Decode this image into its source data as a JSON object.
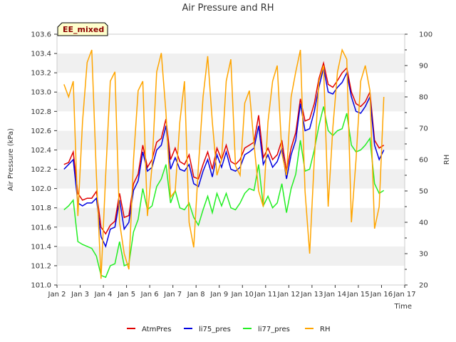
{
  "chart_data": {
    "type": "line",
    "title": "Air Pressure and RH",
    "badge": "EE_mixed",
    "xlabel": "Time",
    "ylabel": "Air Pressure (kPa)",
    "y2label": "RH",
    "x_ticks": [
      "Jan 2",
      "Jan 3",
      "Jan 4",
      "Jan 5",
      "Jan 6",
      "Jan 7",
      "Jan 8",
      "Jan 9",
      "Jan 10",
      "Jan 11",
      "Jan 12",
      "Jan 13",
      "Jan 14",
      "Jan 15",
      "Jan 16",
      "Jan 17"
    ],
    "xlim": [
      2,
      17
    ],
    "ylim": [
      101.0,
      103.6
    ],
    "y_ticks": [
      "101.0",
      "101.2",
      "101.4",
      "101.6",
      "101.8",
      "102.0",
      "102.2",
      "102.4",
      "102.6",
      "102.8",
      "103.0",
      "103.2",
      "103.4",
      "103.6"
    ],
    "y2lim": [
      20,
      100
    ],
    "y2_ticks": [
      "20",
      "30",
      "40",
      "50",
      "60",
      "70",
      "80",
      "90",
      "100"
    ],
    "grid": "horizontal bands",
    "legend_position": "bottom",
    "series": [
      {
        "name": "AtmPres",
        "axis": "left",
        "color": "#e00000",
        "x": [
          2.3,
          2.5,
          2.7,
          2.9,
          3.1,
          3.3,
          3.5,
          3.7,
          3.9,
          4.1,
          4.3,
          4.5,
          4.7,
          4.9,
          5.1,
          5.3,
          5.5,
          5.7,
          5.9,
          6.1,
          6.3,
          6.5,
          6.7,
          6.9,
          7.1,
          7.3,
          7.5,
          7.7,
          7.9,
          8.1,
          8.3,
          8.5,
          8.7,
          8.9,
          9.1,
          9.3,
          9.5,
          9.7,
          9.9,
          10.1,
          10.3,
          10.5,
          10.7,
          10.9,
          11.1,
          11.3,
          11.5,
          11.7,
          11.9,
          12.1,
          12.3,
          12.5,
          12.7,
          12.9,
          13.1,
          13.3,
          13.5,
          13.7,
          13.9,
          14.1,
          14.3,
          14.5,
          14.7,
          14.9,
          15.1,
          15.3,
          15.5,
          15.7,
          15.9,
          16.1
        ],
        "y": [
          102.25,
          102.27,
          102.38,
          101.95,
          101.88,
          101.9,
          101.9,
          101.97,
          101.6,
          101.53,
          101.62,
          101.66,
          101.95,
          101.7,
          101.72,
          102.05,
          102.15,
          102.45,
          102.22,
          102.3,
          102.48,
          102.52,
          102.72,
          102.3,
          102.42,
          102.28,
          102.25,
          102.35,
          102.12,
          102.1,
          102.25,
          102.38,
          102.2,
          102.42,
          102.3,
          102.45,
          102.28,
          102.25,
          102.3,
          102.42,
          102.45,
          102.48,
          102.76,
          102.32,
          102.42,
          102.3,
          102.35,
          102.5,
          102.18,
          102.42,
          102.58,
          102.93,
          102.7,
          102.72,
          102.88,
          103.14,
          103.3,
          103.08,
          103.05,
          103.12,
          103.2,
          103.25,
          103.0,
          102.88,
          102.85,
          102.9,
          103.0,
          102.5,
          102.42,
          102.45
        ]
      },
      {
        "name": "li75_pres",
        "axis": "left",
        "color": "#0000e0",
        "x": [
          2.3,
          2.5,
          2.7,
          2.9,
          3.1,
          3.3,
          3.5,
          3.7,
          3.9,
          4.1,
          4.3,
          4.5,
          4.7,
          4.9,
          5.1,
          5.3,
          5.5,
          5.7,
          5.9,
          6.1,
          6.3,
          6.5,
          6.7,
          6.9,
          7.1,
          7.3,
          7.5,
          7.7,
          7.9,
          8.1,
          8.3,
          8.5,
          8.7,
          8.9,
          9.1,
          9.3,
          9.5,
          9.7,
          9.9,
          10.1,
          10.3,
          10.5,
          10.7,
          10.9,
          11.1,
          11.3,
          11.5,
          11.7,
          11.9,
          12.1,
          12.3,
          12.5,
          12.7,
          12.9,
          13.1,
          13.3,
          13.5,
          13.7,
          13.9,
          14.1,
          14.3,
          14.5,
          14.7,
          14.9,
          15.1,
          15.3,
          15.5,
          15.7,
          15.9,
          16.1
        ],
        "y": [
          102.2,
          102.25,
          102.3,
          101.85,
          101.82,
          101.85,
          101.85,
          101.9,
          101.5,
          101.4,
          101.58,
          101.6,
          101.88,
          101.58,
          101.65,
          101.98,
          102.08,
          102.38,
          102.18,
          102.22,
          102.4,
          102.45,
          102.65,
          102.2,
          102.32,
          102.2,
          102.18,
          102.25,
          102.05,
          102.02,
          102.18,
          102.3,
          102.12,
          102.35,
          102.22,
          102.38,
          102.2,
          102.18,
          102.22,
          102.35,
          102.38,
          102.42,
          102.65,
          102.25,
          102.35,
          102.22,
          102.28,
          102.42,
          102.1,
          102.35,
          102.5,
          102.88,
          102.6,
          102.62,
          102.8,
          103.05,
          103.25,
          103.0,
          102.98,
          103.05,
          103.1,
          103.2,
          102.95,
          102.8,
          102.78,
          102.85,
          102.95,
          102.45,
          102.3,
          102.4
        ]
      },
      {
        "name": "li77_pres",
        "axis": "left",
        "color": "#22ee22",
        "x": [
          2.3,
          2.5,
          2.7,
          2.9,
          3.1,
          3.3,
          3.5,
          3.7,
          3.9,
          4.1,
          4.3,
          4.5,
          4.7,
          4.9,
          5.1,
          5.3,
          5.5,
          5.7,
          5.9,
          6.1,
          6.3,
          6.5,
          6.7,
          6.9,
          7.1,
          7.3,
          7.5,
          7.7,
          7.9,
          8.1,
          8.3,
          8.5,
          8.7,
          8.9,
          9.1,
          9.3,
          9.5,
          9.7,
          9.9,
          10.1,
          10.3,
          10.5,
          10.7,
          10.9,
          11.1,
          11.3,
          11.5,
          11.7,
          11.9,
          12.1,
          12.3,
          12.5,
          12.7,
          12.9,
          13.1,
          13.3,
          13.5,
          13.7,
          13.9,
          14.1,
          14.3,
          14.5,
          14.7,
          14.9,
          15.1,
          15.3,
          15.5,
          15.7,
          15.9,
          16.1
        ],
        "y": [
          101.78,
          101.82,
          101.88,
          101.45,
          101.42,
          101.4,
          101.38,
          101.3,
          101.1,
          101.08,
          101.2,
          101.22,
          101.45,
          101.2,
          101.22,
          101.55,
          101.68,
          102.0,
          101.78,
          101.82,
          102.02,
          102.1,
          102.25,
          101.85,
          101.98,
          101.8,
          101.78,
          101.85,
          101.7,
          101.62,
          101.78,
          101.92,
          101.75,
          101.95,
          101.82,
          101.95,
          101.8,
          101.78,
          101.85,
          101.95,
          102.0,
          101.98,
          102.25,
          101.82,
          101.92,
          101.8,
          101.85,
          102.05,
          101.75,
          102.0,
          102.15,
          102.5,
          102.18,
          102.2,
          102.4,
          102.65,
          102.85,
          102.6,
          102.55,
          102.6,
          102.62,
          102.78,
          102.45,
          102.38,
          102.4,
          102.45,
          102.52,
          102.05,
          101.95,
          101.98
        ]
      },
      {
        "name": "RH",
        "axis": "right",
        "color": "#ffa500",
        "x": [
          2.3,
          2.5,
          2.7,
          2.9,
          3.1,
          3.3,
          3.5,
          3.7,
          3.9,
          4.1,
          4.3,
          4.5,
          4.7,
          4.9,
          5.1,
          5.3,
          5.5,
          5.7,
          5.9,
          6.1,
          6.3,
          6.5,
          6.7,
          6.9,
          7.1,
          7.3,
          7.5,
          7.7,
          7.9,
          8.1,
          8.3,
          8.5,
          8.7,
          8.9,
          9.1,
          9.3,
          9.5,
          9.7,
          9.9,
          10.1,
          10.3,
          10.5,
          10.7,
          10.9,
          11.1,
          11.3,
          11.5,
          11.7,
          11.9,
          12.1,
          12.3,
          12.5,
          12.7,
          12.9,
          13.1,
          13.3,
          13.5,
          13.7,
          13.9,
          14.1,
          14.3,
          14.5,
          14.7,
          14.9,
          15.1,
          15.3,
          15.5,
          15.7,
          15.9,
          16.1
        ],
        "y": [
          84,
          80,
          85,
          42,
          72,
          91,
          95,
          55,
          22,
          55,
          85,
          88,
          40,
          30,
          25,
          60,
          82,
          85,
          42,
          58,
          88,
          94,
          75,
          48,
          50,
          72,
          85,
          40,
          32,
          58,
          80,
          93,
          72,
          55,
          60,
          85,
          92,
          58,
          55,
          78,
          82,
          65,
          50,
          45,
          72,
          85,
          90,
          62,
          55,
          80,
          88,
          95,
          50,
          30,
          60,
          85,
          90,
          45,
          70,
          88,
          95,
          92,
          40,
          60,
          85,
          90,
          82,
          38,
          45,
          80
        ]
      }
    ]
  }
}
